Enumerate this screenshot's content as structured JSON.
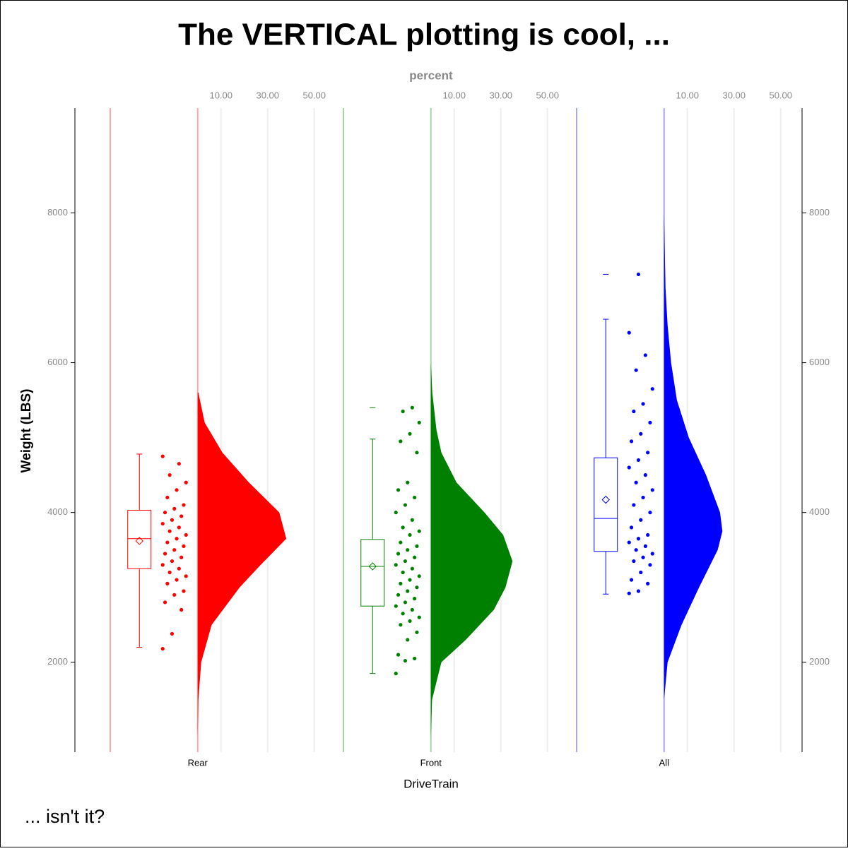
{
  "chart_data": {
    "type": "raincloud",
    "title": "The VERTICAL plotting is cool, ...",
    "footnote": "... isn't it?",
    "x_axis_label": "DriveTrain",
    "y_axis_label": "Weight (LBS)",
    "top_axis_label": "percent",
    "ylim": [
      800,
      9400
    ],
    "yticks": [
      2000,
      4000,
      6000,
      8000
    ],
    "xlim": [
      -37.5,
      62.5
    ],
    "xticks": [
      {
        "value": 10,
        "label": "10.00"
      },
      {
        "value": 30,
        "label": "30.00"
      },
      {
        "value": 50,
        "label": "50.00"
      }
    ],
    "groups": [
      {
        "name": "Rear",
        "color": "#ff0000",
        "box": {
          "min": 2200,
          "q1": 3250,
          "median": 3650,
          "q3": 4030,
          "max": 4780,
          "mean": 3620,
          "outliers": []
        },
        "points": [
          2180,
          2380,
          2700,
          2800,
          2900,
          2950,
          3050,
          3100,
          3150,
          3200,
          3250,
          3300,
          3350,
          3400,
          3450,
          3500,
          3550,
          3600,
          3650,
          3700,
          3750,
          3800,
          3850,
          3900,
          3950,
          4000,
          4050,
          4100,
          4200,
          4300,
          4400,
          4500,
          4650,
          4750
        ],
        "density": {
          "y": [
            1000,
            1500,
            2000,
            2500,
            3000,
            3300,
            3650,
            4000,
            4400,
            4800,
            5200,
            5600
          ],
          "percent": [
            0,
            0.3,
            1.5,
            6,
            18,
            27,
            38,
            35,
            22,
            10.6,
            3,
            0.3
          ]
        }
      },
      {
        "name": "Front",
        "color": "#008000",
        "box": {
          "min": 1850,
          "q1": 2750,
          "median": 3280,
          "q3": 3640,
          "max": 4980,
          "mean": 3280,
          "outliers": [
            5400
          ]
        },
        "points": [
          1850,
          2020,
          2050,
          2100,
          2300,
          2400,
          2500,
          2550,
          2600,
          2650,
          2700,
          2750,
          2800,
          2850,
          2900,
          2950,
          3000,
          3050,
          3100,
          3150,
          3200,
          3250,
          3300,
          3350,
          3400,
          3450,
          3500,
          3550,
          3600,
          3700,
          3750,
          3800,
          3900,
          4000,
          4100,
          4200,
          4300,
          4400,
          4800,
          4950,
          5050,
          5200,
          5350,
          5400
        ],
        "density": {
          "y": [
            1000,
            1500,
            2000,
            2300,
            2700,
            3000,
            3350,
            3700,
            4000,
            4400,
            4800,
            5100,
            5600,
            6000
          ],
          "percent": [
            0,
            0.5,
            4.5,
            15,
            27,
            32,
            35,
            31,
            23,
            11,
            4.5,
            2.4,
            0.6,
            0
          ]
        }
      },
      {
        "name": "All",
        "color": "#0000ff",
        "box": {
          "min": 2910,
          "q1": 3480,
          "median": 3920,
          "q3": 4730,
          "max": 6580,
          "mean": 4170,
          "outliers": [
            7180
          ]
        },
        "points": [
          2920,
          2950,
          3050,
          3100,
          3200,
          3300,
          3350,
          3400,
          3450,
          3500,
          3550,
          3600,
          3650,
          3700,
          3800,
          3900,
          4000,
          4100,
          4200,
          4300,
          4400,
          4500,
          4600,
          4700,
          4800,
          4950,
          5050,
          5200,
          5350,
          5450,
          5650,
          5900,
          6100,
          6400,
          7180
        ],
        "density": {
          "y": [
            1500,
            2000,
            2500,
            3000,
            3500,
            3750,
            4000,
            4500,
            5000,
            5500,
            6000,
            6500,
            7000,
            7500,
            8000
          ],
          "percent": [
            0,
            1.5,
            7.5,
            15,
            23,
            25,
            24,
            18,
            10.6,
            5.5,
            3,
            1.5,
            0.6,
            0.3,
            0
          ]
        }
      }
    ]
  }
}
